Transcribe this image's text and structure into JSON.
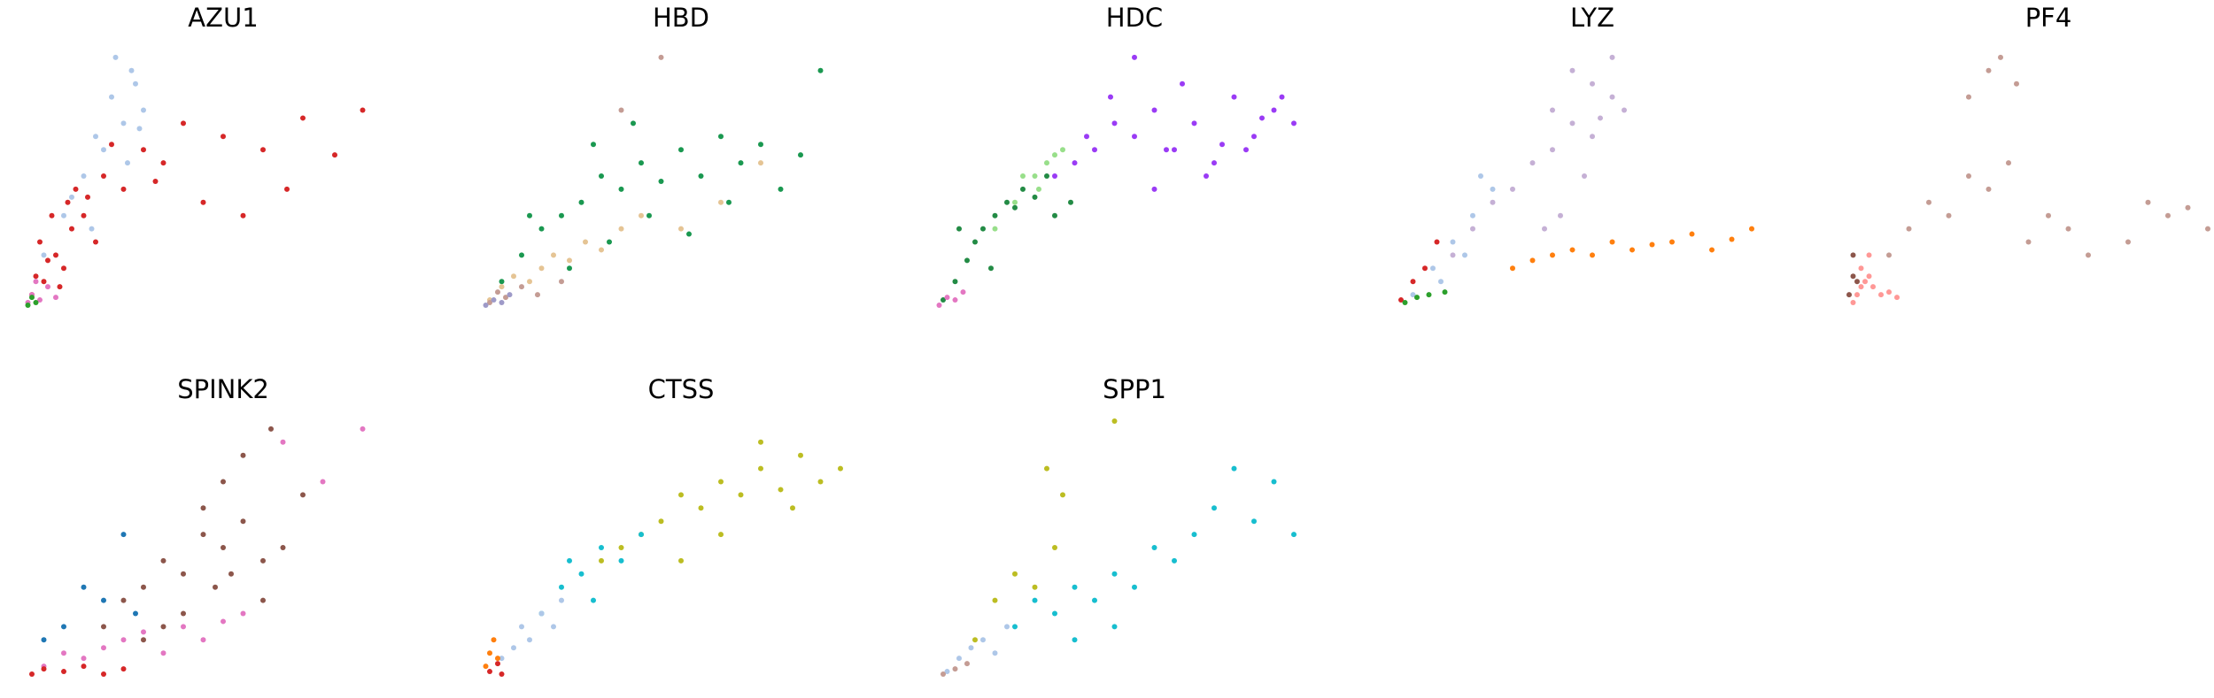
{
  "chart_data": [
    {
      "type": "scatter",
      "title": "AZU1",
      "xlim": [
        0,
        1
      ],
      "ylim": [
        0,
        1
      ],
      "series": [
        {
          "color": "#d62728",
          "x": [
            0.02,
            0.05,
            0.08,
            0.1,
            0.12,
            0.15,
            0.18,
            0.2,
            0.25,
            0.3,
            0.35,
            0.4,
            0.45,
            0.5,
            0.6,
            0.7,
            0.85,
            0.04,
            0.07,
            0.13,
            0.09,
            0.16,
            0.22,
            0.33,
            0.55,
            0.66,
            0.78,
            0.03,
            0.06,
            0.11
          ],
          "y": [
            0.05,
            0.1,
            0.2,
            0.15,
            0.3,
            0.35,
            0.25,
            0.5,
            0.45,
            0.6,
            0.55,
            0.7,
            0.4,
            0.65,
            0.6,
            0.72,
            0.75,
            0.25,
            0.35,
            0.45,
            0.08,
            0.42,
            0.62,
            0.48,
            0.35,
            0.45,
            0.58,
            0.12,
            0.18,
            0.4
          ]
        },
        {
          "color": "#aec7e8",
          "x": [
            0.05,
            0.1,
            0.15,
            0.2,
            0.22,
            0.25,
            0.28,
            0.3,
            0.18,
            0.23,
            0.27,
            0.26,
            0.12,
            0.17,
            0.29
          ],
          "y": [
            0.2,
            0.35,
            0.5,
            0.6,
            0.8,
            0.7,
            0.85,
            0.75,
            0.65,
            0.95,
            0.9,
            0.55,
            0.42,
            0.3,
            0.68
          ]
        },
        {
          "color": "#e377c2",
          "x": [
            0.01,
            0.02,
            0.04,
            0.06,
            0.03,
            0.08
          ],
          "y": [
            0.02,
            0.05,
            0.03,
            0.08,
            0.1,
            0.04
          ]
        },
        {
          "color": "#2ca02c",
          "x": [
            0.01,
            0.03,
            0.02
          ],
          "y": [
            0.01,
            0.02,
            0.04
          ]
        }
      ]
    },
    {
      "type": "scatter",
      "title": "HBD",
      "xlim": [
        0,
        1
      ],
      "ylim": [
        0,
        1
      ],
      "series": [
        {
          "color": "#1a9850",
          "x": [
            0.05,
            0.1,
            0.15,
            0.2,
            0.25,
            0.3,
            0.35,
            0.4,
            0.45,
            0.5,
            0.55,
            0.6,
            0.65,
            0.7,
            0.75,
            0.8,
            0.85,
            0.12,
            0.22,
            0.32,
            0.42,
            0.52,
            0.62,
            0.28,
            0.38
          ],
          "y": [
            0.1,
            0.2,
            0.3,
            0.35,
            0.4,
            0.5,
            0.45,
            0.55,
            0.48,
            0.6,
            0.5,
            0.65,
            0.55,
            0.62,
            0.45,
            0.58,
            0.9,
            0.35,
            0.15,
            0.25,
            0.35,
            0.28,
            0.4,
            0.62,
            0.7
          ]
        },
        {
          "color": "#e5c494",
          "x": [
            0.02,
            0.05,
            0.08,
            0.12,
            0.15,
            0.18,
            0.22,
            0.26,
            0.3,
            0.35,
            0.4,
            0.5,
            0.6,
            0.7
          ],
          "y": [
            0.03,
            0.08,
            0.12,
            0.1,
            0.15,
            0.2,
            0.18,
            0.25,
            0.22,
            0.3,
            0.35,
            0.3,
            0.4,
            0.55
          ]
        },
        {
          "color": "#c49c94",
          "x": [
            0.02,
            0.04,
            0.06,
            0.1,
            0.14,
            0.2,
            0.35,
            0.45
          ],
          "y": [
            0.02,
            0.06,
            0.04,
            0.08,
            0.05,
            0.1,
            0.75,
            0.95
          ]
        },
        {
          "color": "#9e9ac8",
          "x": [
            0.01,
            0.03,
            0.05,
            0.07
          ],
          "y": [
            0.01,
            0.03,
            0.02,
            0.05
          ]
        }
      ]
    },
    {
      "type": "scatter",
      "title": "HDC",
      "xlim": [
        0,
        1
      ],
      "ylim": [
        0,
        1
      ],
      "series": [
        {
          "color": "#9a3bf5",
          "x": [
            0.3,
            0.35,
            0.4,
            0.45,
            0.5,
            0.55,
            0.6,
            0.65,
            0.7,
            0.75,
            0.8,
            0.85,
            0.9,
            0.62,
            0.68,
            0.72,
            0.78,
            0.82,
            0.5,
            0.55,
            0.44,
            0.58,
            0.38,
            0.87
          ],
          "y": [
            0.5,
            0.55,
            0.6,
            0.7,
            0.65,
            0.75,
            0.6,
            0.7,
            0.55,
            0.8,
            0.65,
            0.75,
            0.7,
            0.85,
            0.5,
            0.62,
            0.6,
            0.72,
            0.95,
            0.45,
            0.8,
            0.6,
            0.65,
            0.8
          ]
        },
        {
          "color": "#238b45",
          "x": [
            0.02,
            0.05,
            0.08,
            0.1,
            0.12,
            0.15,
            0.18,
            0.2,
            0.22,
            0.25,
            0.28,
            0.3,
            0.34,
            0.06,
            0.14
          ],
          "y": [
            0.03,
            0.1,
            0.18,
            0.25,
            0.3,
            0.35,
            0.4,
            0.38,
            0.45,
            0.42,
            0.5,
            0.35,
            0.4,
            0.3,
            0.15
          ]
        },
        {
          "color": "#98df8a",
          "x": [
            0.15,
            0.2,
            0.25,
            0.28,
            0.3,
            0.32,
            0.26,
            0.22
          ],
          "y": [
            0.3,
            0.4,
            0.5,
            0.55,
            0.58,
            0.6,
            0.45,
            0.5
          ]
        },
        {
          "color": "#e377c2",
          "x": [
            0.01,
            0.03,
            0.05,
            0.07
          ],
          "y": [
            0.01,
            0.04,
            0.03,
            0.06
          ]
        }
      ]
    },
    {
      "type": "scatter",
      "title": "LYZ",
      "xlim": [
        0,
        1
      ],
      "ylim": [
        0,
        1
      ],
      "series": [
        {
          "color": "#c5b0d5",
          "x": [
            0.15,
            0.2,
            0.25,
            0.3,
            0.35,
            0.4,
            0.45,
            0.5,
            0.55,
            0.55,
            0.5,
            0.45,
            0.4,
            0.52,
            0.48,
            0.42,
            0.58,
            0.38
          ],
          "y": [
            0.2,
            0.3,
            0.4,
            0.45,
            0.55,
            0.6,
            0.7,
            0.65,
            0.8,
            0.95,
            0.85,
            0.9,
            0.75,
            0.72,
            0.5,
            0.35,
            0.75,
            0.3
          ]
        },
        {
          "color": "#ff7f0e",
          "x": [
            0.3,
            0.35,
            0.4,
            0.45,
            0.5,
            0.55,
            0.6,
            0.65,
            0.7,
            0.75,
            0.8,
            0.85,
            0.9
          ],
          "y": [
            0.15,
            0.18,
            0.2,
            0.22,
            0.2,
            0.25,
            0.22,
            0.24,
            0.25,
            0.28,
            0.22,
            0.26,
            0.3
          ]
        },
        {
          "color": "#aec7e8",
          "x": [
            0.05,
            0.1,
            0.15,
            0.2,
            0.25,
            0.18,
            0.12,
            0.22
          ],
          "y": [
            0.05,
            0.15,
            0.25,
            0.35,
            0.45,
            0.2,
            0.1,
            0.5
          ]
        },
        {
          "color": "#d62728",
          "x": [
            0.02,
            0.05,
            0.08,
            0.11
          ],
          "y": [
            0.03,
            0.1,
            0.15,
            0.25
          ]
        },
        {
          "color": "#2ca02c",
          "x": [
            0.03,
            0.06,
            0.09,
            0.13
          ],
          "y": [
            0.02,
            0.04,
            0.05,
            0.06
          ]
        }
      ]
    },
    {
      "type": "scatter",
      "title": "PF4",
      "xlim": [
        0,
        1
      ],
      "ylim": [
        0,
        1
      ],
      "series": [
        {
          "color": "#ff9896",
          "x": [
            0.01,
            0.02,
            0.03,
            0.04,
            0.05,
            0.06,
            0.08,
            0.1,
            0.12,
            0.03,
            0.05
          ],
          "y": [
            0.02,
            0.05,
            0.08,
            0.1,
            0.12,
            0.08,
            0.05,
            0.06,
            0.04,
            0.15,
            0.2
          ]
        },
        {
          "color": "#c49c94",
          "x": [
            0.1,
            0.15,
            0.2,
            0.25,
            0.3,
            0.35,
            0.4,
            0.45,
            0.5,
            0.55,
            0.3,
            0.35,
            0.38,
            0.42,
            0.6,
            0.7,
            0.8,
            0.9,
            0.75,
            0.85,
            0.95
          ],
          "y": [
            0.2,
            0.3,
            0.4,
            0.35,
            0.5,
            0.45,
            0.55,
            0.25,
            0.35,
            0.3,
            0.8,
            0.9,
            0.95,
            0.85,
            0.2,
            0.25,
            0.35,
            0.3,
            0.4,
            0.38,
            0.35
          ]
        },
        {
          "color": "#8c564b",
          "x": [
            0.0,
            0.01,
            0.01,
            0.02
          ],
          "y": [
            0.05,
            0.12,
            0.2,
            0.1
          ]
        }
      ]
    },
    {
      "type": "scatter",
      "title": "SPINK2",
      "xlim": [
        0,
        1
      ],
      "ylim": [
        0,
        1
      ],
      "series": [
        {
          "color": "#8c564b",
          "x": [
            0.2,
            0.25,
            0.3,
            0.35,
            0.4,
            0.45,
            0.5,
            0.55,
            0.6,
            0.65,
            0.7,
            0.5,
            0.55,
            0.45,
            0.4,
            0.35,
            0.6,
            0.62,
            0.52,
            0.48,
            0.3
          ],
          "y": [
            0.2,
            0.3,
            0.35,
            0.45,
            0.4,
            0.55,
            0.5,
            0.6,
            0.45,
            0.5,
            0.7,
            0.75,
            0.85,
            0.65,
            0.25,
            0.2,
            0.3,
            0.95,
            0.4,
            0.35,
            0.15
          ]
        },
        {
          "color": "#e377c2",
          "x": [
            0.05,
            0.1,
            0.15,
            0.2,
            0.25,
            0.3,
            0.35,
            0.4,
            0.45,
            0.5,
            0.55,
            0.65,
            0.75,
            0.85
          ],
          "y": [
            0.05,
            0.1,
            0.08,
            0.12,
            0.15,
            0.18,
            0.1,
            0.2,
            0.15,
            0.22,
            0.25,
            0.9,
            0.75,
            0.95
          ]
        },
        {
          "color": "#1f77b4",
          "x": [
            0.05,
            0.1,
            0.15,
            0.2,
            0.25,
            0.28
          ],
          "y": [
            0.15,
            0.2,
            0.35,
            0.3,
            0.55,
            0.25
          ]
        },
        {
          "color": "#d62728",
          "x": [
            0.02,
            0.05,
            0.1,
            0.15,
            0.2,
            0.25
          ],
          "y": [
            0.02,
            0.04,
            0.03,
            0.05,
            0.02,
            0.04
          ]
        }
      ]
    },
    {
      "type": "scatter",
      "title": "CTSS",
      "xlim": [
        0,
        1
      ],
      "ylim": [
        0,
        1
      ],
      "series": [
        {
          "color": "#bcbd22",
          "x": [
            0.3,
            0.35,
            0.4,
            0.45,
            0.5,
            0.55,
            0.6,
            0.65,
            0.7,
            0.75,
            0.8,
            0.85,
            0.9,
            0.5,
            0.6,
            0.7,
            0.78
          ],
          "y": [
            0.45,
            0.5,
            0.55,
            0.6,
            0.7,
            0.65,
            0.75,
            0.7,
            0.8,
            0.72,
            0.85,
            0.75,
            0.8,
            0.45,
            0.55,
            0.9,
            0.65
          ]
        },
        {
          "color": "#17becf",
          "x": [
            0.15,
            0.2,
            0.25,
            0.3,
            0.35,
            0.4,
            0.28,
            0.22
          ],
          "y": [
            0.25,
            0.35,
            0.4,
            0.5,
            0.45,
            0.55,
            0.3,
            0.45
          ]
        },
        {
          "color": "#aec7e8",
          "x": [
            0.05,
            0.08,
            0.1,
            0.12,
            0.15,
            0.18,
            0.2
          ],
          "y": [
            0.08,
            0.12,
            0.2,
            0.15,
            0.25,
            0.2,
            0.3
          ]
        },
        {
          "color": "#ff7f0e",
          "x": [
            0.01,
            0.02,
            0.03,
            0.04
          ],
          "y": [
            0.05,
            0.1,
            0.15,
            0.08
          ]
        },
        {
          "color": "#d62728",
          "x": [
            0.02,
            0.04,
            0.05
          ],
          "y": [
            0.03,
            0.06,
            0.02
          ]
        }
      ]
    },
    {
      "type": "scatter",
      "title": "SPP1",
      "xlim": [
        0,
        1
      ],
      "ylim": [
        0,
        1
      ],
      "series": [
        {
          "color": "#17becf",
          "x": [
            0.2,
            0.25,
            0.3,
            0.35,
            0.4,
            0.45,
            0.5,
            0.55,
            0.6,
            0.65,
            0.7,
            0.75,
            0.8,
            0.85,
            0.9,
            0.35,
            0.45
          ],
          "y": [
            0.2,
            0.3,
            0.25,
            0.35,
            0.3,
            0.4,
            0.35,
            0.5,
            0.45,
            0.55,
            0.65,
            0.8,
            0.6,
            0.75,
            0.55,
            0.15,
            0.2
          ]
        },
        {
          "color": "#bcbd22",
          "x": [
            0.1,
            0.15,
            0.2,
            0.25,
            0.3,
            0.32,
            0.28,
            0.45
          ],
          "y": [
            0.15,
            0.3,
            0.4,
            0.35,
            0.5,
            0.7,
            0.8,
            0.98
          ]
        },
        {
          "color": "#aec7e8",
          "x": [
            0.03,
            0.06,
            0.09,
            0.12,
            0.15,
            0.18
          ],
          "y": [
            0.03,
            0.08,
            0.12,
            0.15,
            0.1,
            0.2
          ]
        },
        {
          "color": "#c49c94",
          "x": [
            0.02,
            0.05,
            0.08
          ],
          "y": [
            0.02,
            0.04,
            0.06
          ]
        }
      ]
    }
  ]
}
